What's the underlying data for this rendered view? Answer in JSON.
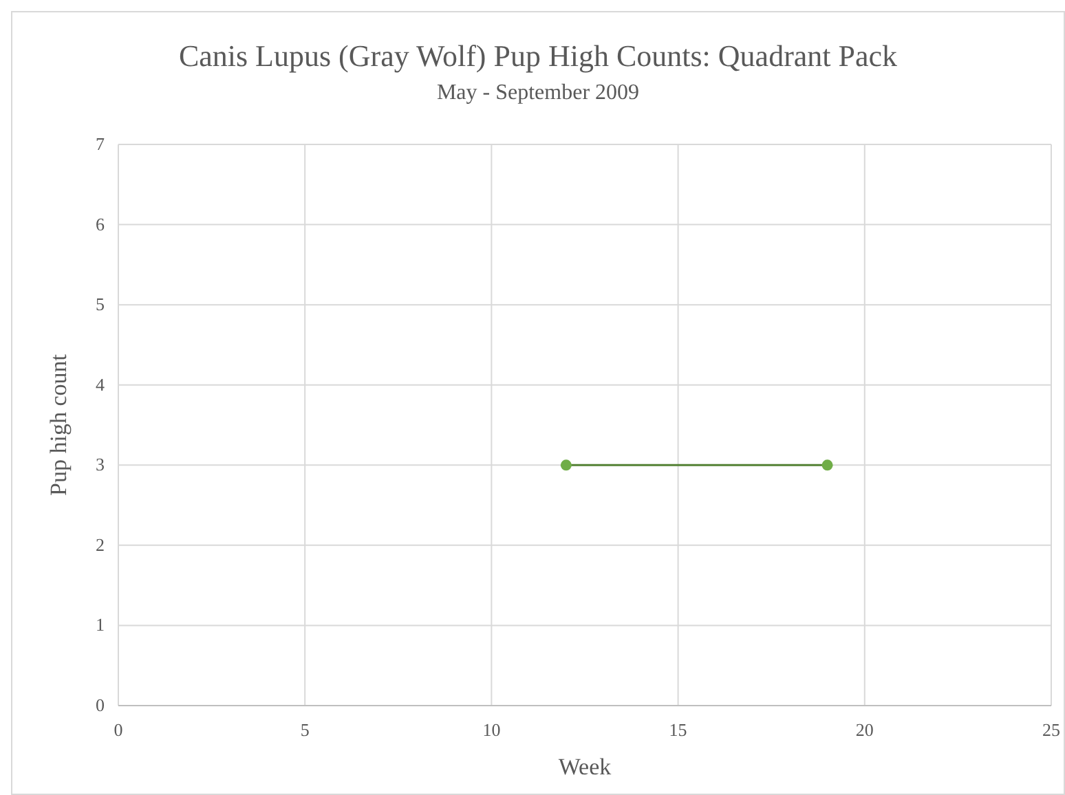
{
  "chart_data": {
    "type": "line",
    "title": "Canis Lupus (Gray Wolf) Pup High Counts: Quadrant Pack",
    "subtitle": "May - September 2009",
    "xlabel": "Week",
    "ylabel": "Pup high count",
    "x": [
      12,
      19
    ],
    "series": [
      {
        "color": "#70ad47",
        "values": [
          3,
          3
        ]
      }
    ],
    "xlim": [
      0,
      25
    ],
    "xticks": [
      0,
      5,
      10,
      15,
      20,
      25
    ],
    "ylim": [
      0,
      7
    ],
    "yticks": [
      0,
      1,
      2,
      3,
      4,
      5,
      6,
      7
    ],
    "grid": true,
    "marker": "circle",
    "line_style": "solid"
  }
}
